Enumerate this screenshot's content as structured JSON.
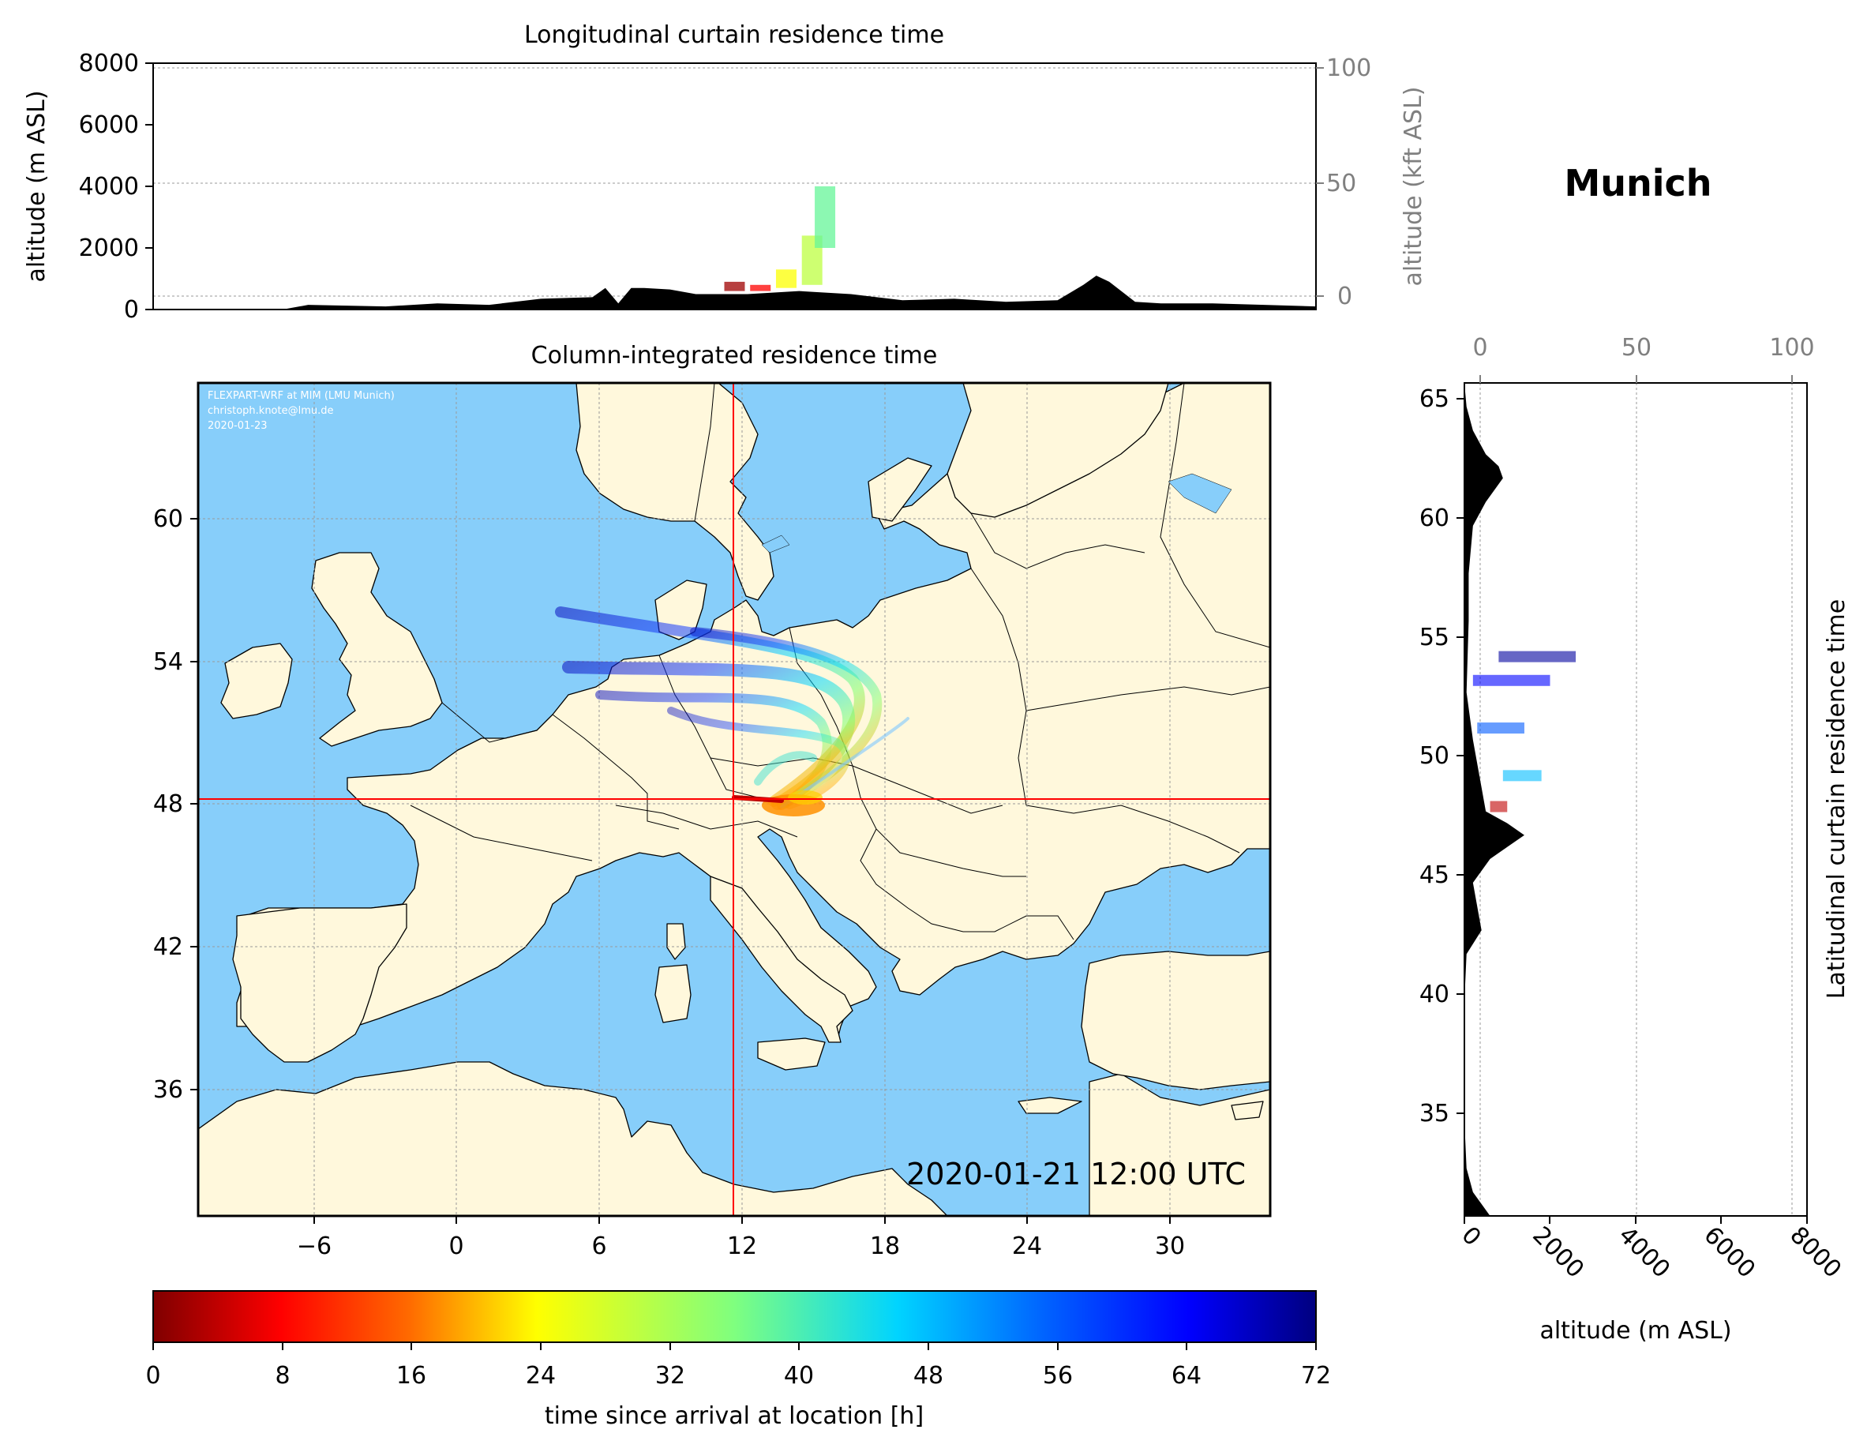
{
  "location_name": "Munich",
  "colors": {
    "sea": "#87CEFA",
    "land": "#FFF8DC",
    "border": "#000000",
    "crosshair": "#FF0000",
    "terrain": "#000000",
    "secondary_axis": "#808080"
  },
  "top_panel": {
    "title": "Longitudinal curtain residence time",
    "ylabel_left": "altitude (m ASL)",
    "ylabel_right": "altitude (kft ASL)",
    "yticks_left": [
      "0",
      "2000",
      "4000",
      "6000",
      "8000"
    ],
    "yticks_right": [
      "0",
      "50",
      "100"
    ]
  },
  "map_panel": {
    "title": "Column-integrated residence time",
    "credit_lines": [
      "FLEXPART-WRF at MIM (LMU Munich)",
      "christoph.knote@lmu.de",
      "2020-01-23"
    ],
    "timestamp": "2020-01-21 12:00 UTC",
    "xticks": [
      "−6",
      "0",
      "6",
      "12",
      "18",
      "24",
      "30"
    ],
    "yticks": [
      "36",
      "42",
      "48",
      "54",
      "60"
    ]
  },
  "right_panel": {
    "ylabel": "Latitudinal curtain residence time",
    "xlabel": "altitude (m ASL)",
    "xticks_bottom": [
      "0",
      "2000",
      "4000",
      "6000",
      "8000"
    ],
    "xticks_top": [
      "0",
      "50",
      "100"
    ],
    "yticks": [
      "35",
      "40",
      "45",
      "50",
      "55",
      "60",
      "65"
    ]
  },
  "colorbar": {
    "label": "time since arrival at location [h]",
    "ticks": [
      "0",
      "8",
      "16",
      "24",
      "32",
      "40",
      "48",
      "56",
      "64",
      "72"
    ]
  },
  "chart_data": [
    {
      "type": "heatmap",
      "title": "Longitudinal curtain residence time",
      "xlabel": "",
      "ylabel": "altitude (m ASL)",
      "y2label": "altitude (kft ASL)",
      "ylim": [
        0,
        8000
      ],
      "y2lim": [
        0,
        100
      ],
      "xlim": [
        -11,
        34
      ],
      "terrain_profile": {
        "x": [
          -11,
          -6,
          -5,
          -2,
          0,
          2,
          4,
          6,
          6.5,
          7,
          7.5,
          8,
          9,
          10,
          12,
          14,
          16,
          18,
          20,
          22,
          24,
          25,
          25.5,
          26,
          27,
          28,
          30,
          32,
          34
        ],
        "y": [
          0,
          0,
          150,
          100,
          200,
          150,
          350,
          400,
          700,
          200,
          700,
          700,
          650,
          500,
          500,
          600,
          500,
          300,
          350,
          250,
          300,
          800,
          1100,
          900,
          250,
          200,
          200,
          150,
          100
        ]
      },
      "residence": [
        {
          "x": 11.5,
          "z_min": 600,
          "z_max": 900,
          "hours": 2
        },
        {
          "x": 12.5,
          "z_min": 600,
          "z_max": 800,
          "hours": 8
        },
        {
          "x": 13.5,
          "z_min": 700,
          "z_max": 1300,
          "hours": 24
        },
        {
          "x": 14.5,
          "z_min": 800,
          "z_max": 2400,
          "hours": 30
        },
        {
          "x": 15,
          "z_min": 2000,
          "z_max": 4000,
          "hours": 38
        }
      ]
    },
    {
      "type": "heatmap",
      "title": "Latitudinal curtain residence time",
      "xlabel": "altitude (m ASL)",
      "x2label": "",
      "xlim": [
        0,
        8000
      ],
      "x2lim": [
        0,
        100
      ],
      "ylim": [
        31,
        66
      ],
      "terrain_profile": {
        "lat": [
          31,
          32,
          33,
          35,
          40,
          42,
          43,
          44,
          45,
          46,
          46.5,
          47,
          47.5,
          48,
          49,
          50,
          51,
          53,
          56,
          58,
          60,
          61,
          62,
          62.5,
          63,
          64,
          65,
          66
        ],
        "alt": [
          600,
          200,
          50,
          0,
          0,
          50,
          400,
          300,
          200,
          600,
          1000,
          1400,
          1000,
          500,
          400,
          300,
          200,
          50,
          100,
          100,
          200,
          500,
          900,
          800,
          500,
          200,
          50,
          0
        ]
      },
      "residence": [
        {
          "lat": 48.2,
          "alt_min": 600,
          "alt_max": 1000,
          "hours": 4
        },
        {
          "lat": 49.5,
          "alt_min": 900,
          "alt_max": 1800,
          "hours": 48
        },
        {
          "lat": 51.5,
          "alt_min": 300,
          "alt_max": 1400,
          "hours": 56
        },
        {
          "lat": 53.5,
          "alt_min": 200,
          "alt_max": 2000,
          "hours": 64
        },
        {
          "lat": 54.5,
          "alt_min": 800,
          "alt_max": 2600,
          "hours": 70
        }
      ]
    },
    {
      "type": "heatmap",
      "title": "Column-integrated residence time",
      "xlim": [
        -11,
        34
      ],
      "ylim": [
        30.5,
        65.5
      ],
      "arrival_location": {
        "lon": 11.6,
        "lat": 48.2
      },
      "colorbar": {
        "min": 0,
        "max": 72,
        "label": "time since arrival at location [h]",
        "colormap": "jet_r"
      }
    }
  ]
}
